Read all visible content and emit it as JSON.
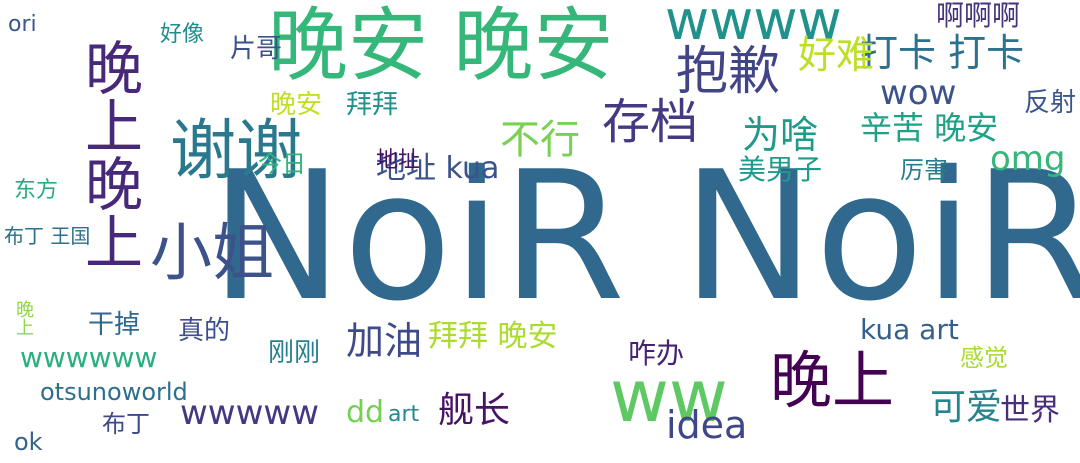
{
  "cloud": {
    "words": [
      {
        "text": "NoiR NoiR",
        "color": "#31688e",
        "vertical": false
      },
      {
        "text": "晚安 晚安",
        "color": "#35b779",
        "vertical": false
      },
      {
        "text": "谢谢",
        "color": "#2a788e",
        "vertical": false
      },
      {
        "text": "小姐",
        "color": "#3b528b",
        "vertical": false
      },
      {
        "text": "晚上晚上",
        "color": "#482878",
        "vertical": true
      },
      {
        "text": "晚上",
        "color": "#440154",
        "vertical": false
      },
      {
        "text": "ww",
        "color": "#5ec962",
        "vertical": false
      },
      {
        "text": "wwww",
        "color": "#21918c",
        "vertical": false
      },
      {
        "text": "抱歉",
        "color": "#414487",
        "vertical": false
      },
      {
        "text": "存档",
        "color": "#443983",
        "vertical": false
      },
      {
        "text": "不行",
        "color": "#7ad151",
        "vertical": false
      },
      {
        "text": "打卡 打卡",
        "color": "#2c728e",
        "vertical": false
      },
      {
        "text": "好难",
        "color": "#bddf26",
        "vertical": false
      },
      {
        "text": "为啥",
        "color": "#1f9a8a",
        "vertical": false
      },
      {
        "text": "omg",
        "color": "#35b779",
        "vertical": false
      },
      {
        "text": "wow",
        "color": "#3b528b",
        "vertical": false
      },
      {
        "text": "啊啊啊",
        "color": "#46337e",
        "vertical": false
      },
      {
        "text": "辛苦 晚安",
        "color": "#1fa187",
        "vertical": false
      },
      {
        "text": "加油",
        "color": "#3e4a89",
        "vertical": false
      },
      {
        "text": "拜拜 晚安",
        "color": "#addc30",
        "vertical": false
      },
      {
        "text": "可爱",
        "color": "#25848e",
        "vertical": false
      },
      {
        "text": "世界",
        "color": "#472d7b",
        "vertical": false
      },
      {
        "text": "idea",
        "color": "#3f4788",
        "vertical": false
      },
      {
        "text": "wwwww",
        "color": "#453781",
        "vertical": false
      },
      {
        "text": "wwwwww",
        "color": "#2ab07f",
        "vertical": false
      },
      {
        "text": "kua art",
        "color": "#355f8d",
        "vertical": false
      },
      {
        "text": "舰长",
        "color": "#471365",
        "vertical": false
      },
      {
        "text": "地址 kua",
        "color": "#3b528b",
        "vertical": false
      },
      {
        "text": "美男子",
        "color": "#1e9b8a",
        "vertical": false
      },
      {
        "text": "晚安",
        "color": "#c2df23",
        "vertical": false
      },
      {
        "text": "拜拜",
        "color": "#20928c",
        "vertical": false
      },
      {
        "text": "片哥",
        "color": "#3b528b",
        "vertical": false
      },
      {
        "text": "好像",
        "color": "#228c8d",
        "vertical": false
      },
      {
        "text": "ori",
        "color": "#38598c",
        "vertical": false
      },
      {
        "text": "干掉",
        "color": "#30698e",
        "vertical": false
      },
      {
        "text": "真的",
        "color": "#3d4e8a",
        "vertical": false
      },
      {
        "text": "刚刚",
        "color": "#277f8e",
        "vertical": false
      },
      {
        "text": "咋办",
        "color": "#482173",
        "vertical": false
      },
      {
        "text": "otsunoworld",
        "color": "#2d708e",
        "vertical": false
      },
      {
        "text": "布丁",
        "color": "#3e4989",
        "vertical": false
      },
      {
        "text": "ok",
        "color": "#33638d",
        "vertical": false
      },
      {
        "text": "dd",
        "color": "#75d054",
        "vertical": false
      },
      {
        "text": "art",
        "color": "#23898e",
        "vertical": false
      },
      {
        "text": "感觉",
        "color": "#a8db34",
        "vertical": false
      },
      {
        "text": "反射",
        "color": "#39568c",
        "vertical": false
      },
      {
        "text": "厉害",
        "color": "#287d8e",
        "vertical": false
      },
      {
        "text": "今日",
        "color": "#31b57b",
        "vertical": false
      },
      {
        "text": "地址",
        "color": "#471164",
        "vertical": false
      },
      {
        "text": "东方",
        "color": "#26ad81",
        "vertical": false
      },
      {
        "text": "布丁 王国",
        "color": "#2e6f8e",
        "vertical": false
      },
      {
        "text": "晚上",
        "color": "#8fd744",
        "vertical": false
      }
    ]
  }
}
